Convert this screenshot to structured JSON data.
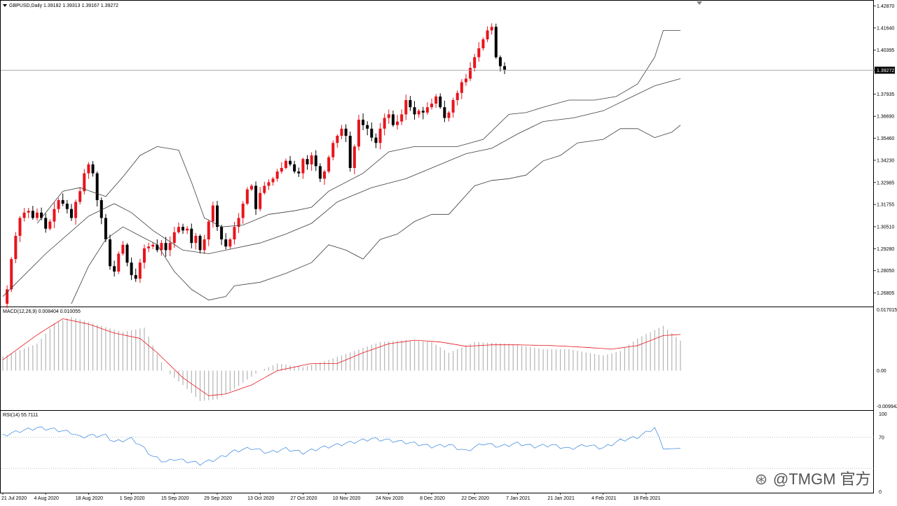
{
  "colors": {
    "bull": "#e8141c",
    "bear": "#000000",
    "band": "#3c3c3c",
    "macd_hist": "#b4b4b4",
    "macd_signal": "#e8141c",
    "rsi_line": "#4a90e2",
    "frame": "#000000",
    "grid_dotted": "#9a9a9a"
  },
  "header": {
    "symbol_line": "GBPUSD,Daily  1.39182 1.39313 1.39167 1.39272",
    "last_price_tag": "1.39272"
  },
  "watermark": {
    "text": "@TMGM 官方"
  },
  "chart_data": [
    {
      "type": "candlestick",
      "symbol": "GBPUSD",
      "timeframe": "Daily",
      "price_axis_ticks": [
        "1.42870",
        "1.41640",
        "1.40395",
        "1.39272",
        "1.37935",
        "1.36690",
        "1.35460",
        "1.34230",
        "1.32985",
        "1.31755",
        "1.30510",
        "1.29280",
        "1.28050",
        "1.26805"
      ],
      "ylim": [
        1.261,
        1.4297
      ],
      "last_price": 1.39272,
      "date_axis_labels": [
        "21 Jul 2020",
        "4 Aug 2020",
        "18 Aug 2020",
        "1 Sep 2020",
        "15 Sep 2020",
        "29 Sep 2020",
        "13 Oct 2020",
        "27 Oct 2020",
        "10 Nov 2020",
        "24 Nov 2020",
        "8 Dec 2020",
        "22 Dec 2020",
        "7 Jan 2021",
        "21 Jan 2021",
        "4 Feb 2021",
        "18 Feb 2021"
      ],
      "label_bar_index": [
        0,
        10,
        20,
        30,
        40,
        50,
        60,
        70,
        80,
        90,
        100,
        110,
        120,
        130,
        140,
        150
      ],
      "close_path": [
        1.262,
        1.27,
        1.287,
        1.3,
        1.31,
        1.313,
        1.314,
        1.31,
        1.313,
        1.31,
        1.304,
        1.308,
        1.315,
        1.32,
        1.318,
        1.315,
        1.31,
        1.319,
        1.325,
        1.335,
        1.34,
        1.335,
        1.32,
        1.31,
        1.298,
        1.283,
        1.28,
        1.29,
        1.295,
        1.285,
        1.278,
        1.276,
        1.285,
        1.293,
        1.294,
        1.295,
        1.292,
        1.296,
        1.292,
        1.296,
        1.302,
        1.305,
        1.303,
        1.304,
        1.296,
        1.3,
        1.292,
        1.298,
        1.308,
        1.317,
        1.305,
        1.298,
        1.294,
        1.298,
        1.305,
        1.31,
        1.318,
        1.326,
        1.328,
        1.315,
        1.324,
        1.328,
        1.33,
        1.332,
        1.336,
        1.338,
        1.342,
        1.34,
        1.336,
        1.335,
        1.343,
        1.34,
        1.345,
        1.339,
        1.332,
        1.336,
        1.344,
        1.352,
        1.356,
        1.36,
        1.356,
        1.338,
        1.35,
        1.365,
        1.362,
        1.36,
        1.355,
        1.352,
        1.36,
        1.366,
        1.368,
        1.362,
        1.364,
        1.368,
        1.376,
        1.372,
        1.368,
        1.37,
        1.369,
        1.372,
        1.374,
        1.378,
        1.372,
        1.366,
        1.369,
        1.376,
        1.38,
        1.386,
        1.388,
        1.394,
        1.4,
        1.405,
        1.41,
        1.415,
        1.417,
        1.4,
        1.395,
        1.393
      ],
      "bollinger": {
        "period": 20,
        "middle": [
          [
            0,
            1.266
          ],
          [
            10,
            1.29
          ],
          [
            20,
            1.311
          ],
          [
            26,
            1.318
          ],
          [
            30,
            1.313
          ],
          [
            35,
            1.303
          ],
          [
            42,
            1.292
          ],
          [
            48,
            1.29
          ],
          [
            52,
            1.292
          ],
          [
            60,
            1.296
          ],
          [
            66,
            1.301
          ],
          [
            72,
            1.307
          ],
          [
            78,
            1.319
          ],
          [
            86,
            1.327
          ],
          [
            94,
            1.332
          ],
          [
            100,
            1.338
          ],
          [
            108,
            1.346
          ],
          [
            114,
            1.349
          ],
          [
            120,
            1.357
          ],
          [
            126,
            1.364
          ],
          [
            133,
            1.366
          ],
          [
            140,
            1.37
          ],
          [
            146,
            1.377
          ],
          [
            152,
            1.384
          ],
          [
            158,
            1.388
          ]
        ],
        "upper": [
          [
            8,
            1.307
          ],
          [
            14,
            1.325
          ],
          [
            18,
            1.327
          ],
          [
            24,
            1.322
          ],
          [
            28,
            1.333
          ],
          [
            32,
            1.345
          ],
          [
            36,
            1.35
          ],
          [
            41,
            1.348
          ],
          [
            44,
            1.33
          ],
          [
            47,
            1.31
          ],
          [
            51,
            1.305
          ],
          [
            56,
            1.306
          ],
          [
            62,
            1.312
          ],
          [
            68,
            1.314
          ],
          [
            72,
            1.316
          ],
          [
            76,
            1.325
          ],
          [
            84,
            1.335
          ],
          [
            90,
            1.347
          ],
          [
            96,
            1.35
          ],
          [
            100,
            1.35
          ],
          [
            106,
            1.35
          ],
          [
            112,
            1.354
          ],
          [
            118,
            1.368
          ],
          [
            122,
            1.369
          ],
          [
            126,
            1.372
          ],
          [
            132,
            1.376
          ],
          [
            138,
            1.376
          ],
          [
            143,
            1.378
          ],
          [
            148,
            1.385
          ],
          [
            152,
            1.4
          ],
          [
            154,
            1.415
          ],
          [
            158,
            1.415
          ]
        ],
        "lower": [
          [
            16,
            1.262
          ],
          [
            20,
            1.283
          ],
          [
            24,
            1.298
          ],
          [
            28,
            1.305
          ],
          [
            32,
            1.3
          ],
          [
            36,
            1.295
          ],
          [
            40,
            1.28
          ],
          [
            44,
            1.27
          ],
          [
            48,
            1.264
          ],
          [
            52,
            1.266
          ],
          [
            54,
            1.272
          ],
          [
            60,
            1.274
          ],
          [
            66,
            1.279
          ],
          [
            72,
            1.285
          ],
          [
            76,
            1.295
          ],
          [
            80,
            1.292
          ],
          [
            84,
            1.287
          ],
          [
            88,
            1.298
          ],
          [
            92,
            1.301
          ],
          [
            96,
            1.308
          ],
          [
            100,
            1.312
          ],
          [
            104,
            1.312
          ],
          [
            110,
            1.328
          ],
          [
            114,
            1.331
          ],
          [
            118,
            1.332
          ],
          [
            122,
            1.334
          ],
          [
            126,
            1.342
          ],
          [
            130,
            1.345
          ],
          [
            134,
            1.352
          ],
          [
            140,
            1.354
          ],
          [
            144,
            1.36
          ],
          [
            148,
            1.36
          ],
          [
            152,
            1.355
          ],
          [
            156,
            1.358
          ],
          [
            158,
            1.362
          ]
        ]
      }
    },
    {
      "type": "macd",
      "label": "MACD(12,26,9) 0.008404 0.010055",
      "axis_ticks": [
        "0.017015",
        "0.00",
        "-0.009942"
      ],
      "ylim": [
        -0.009942,
        0.017015
      ],
      "histogram": [
        [
          0,
          0.004
        ],
        [
          8,
          0.0075
        ],
        [
          12,
          0.0132
        ],
        [
          16,
          0.015
        ],
        [
          22,
          0.0128
        ],
        [
          28,
          0.0108
        ],
        [
          33,
          0.012
        ],
        [
          35,
          0.007
        ],
        [
          38,
          0.0
        ],
        [
          42,
          -0.004
        ],
        [
          46,
          -0.0085
        ],
        [
          50,
          -0.008
        ],
        [
          54,
          -0.005
        ],
        [
          60,
          0.0
        ],
        [
          64,
          0.002
        ],
        [
          70,
          0.001
        ],
        [
          76,
          0.003
        ],
        [
          82,
          0.0055
        ],
        [
          88,
          0.008
        ],
        [
          94,
          0.0085
        ],
        [
          100,
          0.008
        ],
        [
          104,
          0.005
        ],
        [
          110,
          0.008
        ],
        [
          118,
          0.0075
        ],
        [
          126,
          0.006
        ],
        [
          132,
          0.006
        ],
        [
          140,
          0.0042
        ],
        [
          144,
          0.0055
        ],
        [
          148,
          0.009
        ],
        [
          154,
          0.0125
        ],
        [
          158,
          0.0084
        ]
      ],
      "signal": [
        [
          0,
          0.003
        ],
        [
          8,
          0.01
        ],
        [
          14,
          0.0145
        ],
        [
          20,
          0.013
        ],
        [
          26,
          0.0105
        ],
        [
          32,
          0.009
        ],
        [
          36,
          0.005
        ],
        [
          42,
          -0.002
        ],
        [
          48,
          -0.007
        ],
        [
          52,
          -0.0065
        ],
        [
          58,
          -0.004
        ],
        [
          64,
          0.0
        ],
        [
          72,
          0.002
        ],
        [
          78,
          0.002
        ],
        [
          84,
          0.005
        ],
        [
          90,
          0.0075
        ],
        [
          96,
          0.0085
        ],
        [
          102,
          0.008
        ],
        [
          108,
          0.0068
        ],
        [
          114,
          0.0072
        ],
        [
          120,
          0.0072
        ],
        [
          128,
          0.007
        ],
        [
          136,
          0.0065
        ],
        [
          142,
          0.006
        ],
        [
          148,
          0.007
        ],
        [
          154,
          0.0098
        ],
        [
          158,
          0.0101
        ]
      ]
    },
    {
      "type": "line",
      "label": "RSI(14) 55.7111",
      "axis_ticks": [
        "100",
        "70",
        "0"
      ],
      "levels": [
        70,
        30
      ],
      "ylim": [
        0,
        100
      ],
      "rsi": [
        [
          0,
          72
        ],
        [
          4,
          78
        ],
        [
          8,
          82
        ],
        [
          12,
          80
        ],
        [
          16,
          76
        ],
        [
          18,
          70
        ],
        [
          20,
          72
        ],
        [
          24,
          72
        ],
        [
          26,
          64
        ],
        [
          30,
          68
        ],
        [
          32,
          60
        ],
        [
          35,
          45
        ],
        [
          38,
          38
        ],
        [
          40,
          42
        ],
        [
          44,
          38
        ],
        [
          46,
          36
        ],
        [
          50,
          42
        ],
        [
          54,
          52
        ],
        [
          58,
          56
        ],
        [
          62,
          50
        ],
        [
          66,
          55
        ],
        [
          70,
          50
        ],
        [
          74,
          56
        ],
        [
          80,
          62
        ],
        [
          86,
          68
        ],
        [
          90,
          66
        ],
        [
          96,
          62
        ],
        [
          100,
          58
        ],
        [
          104,
          60
        ],
        [
          108,
          52
        ],
        [
          112,
          62
        ],
        [
          116,
          58
        ],
        [
          120,
          62
        ],
        [
          124,
          58
        ],
        [
          128,
          60
        ],
        [
          132,
          55
        ],
        [
          136,
          60
        ],
        [
          140,
          56
        ],
        [
          144,
          66
        ],
        [
          148,
          70
        ],
        [
          150,
          76
        ],
        [
          152,
          82
        ],
        [
          154,
          55
        ],
        [
          158,
          55.7
        ]
      ]
    }
  ]
}
